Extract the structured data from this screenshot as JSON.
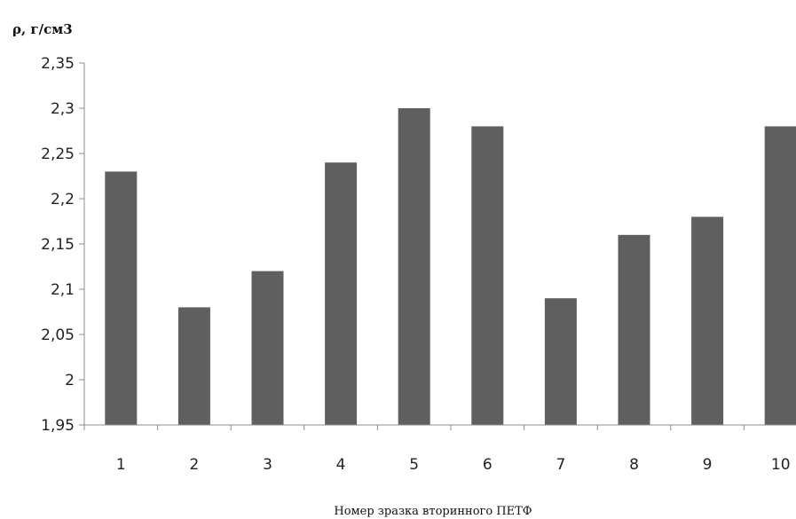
{
  "chart_data": {
    "type": "bar",
    "title": "",
    "ylabel": "ρ, г/см3",
    "xlabel": "Номер зразка вторинного ПЕТФ",
    "categories": [
      "1",
      "2",
      "3",
      "4",
      "5",
      "6",
      "7",
      "8",
      "9",
      "10"
    ],
    "values": [
      2.23,
      2.08,
      2.12,
      2.24,
      2.3,
      2.28,
      2.09,
      2.16,
      2.18,
      2.28
    ],
    "ylim": [
      1.95,
      2.35
    ],
    "yticks": [
      1.95,
      2.0,
      2.05,
      2.1,
      2.15,
      2.2,
      2.25,
      2.3,
      2.35
    ],
    "ytick_labels": [
      "1,95",
      "2",
      "2,05",
      "2,1",
      "2,15",
      "2,2",
      "2,25",
      "2,3",
      "2,35"
    ],
    "grid": false,
    "legend": "none",
    "colors": {
      "bar": "#5f5f5f",
      "axis": "#8c8c8c"
    }
  }
}
